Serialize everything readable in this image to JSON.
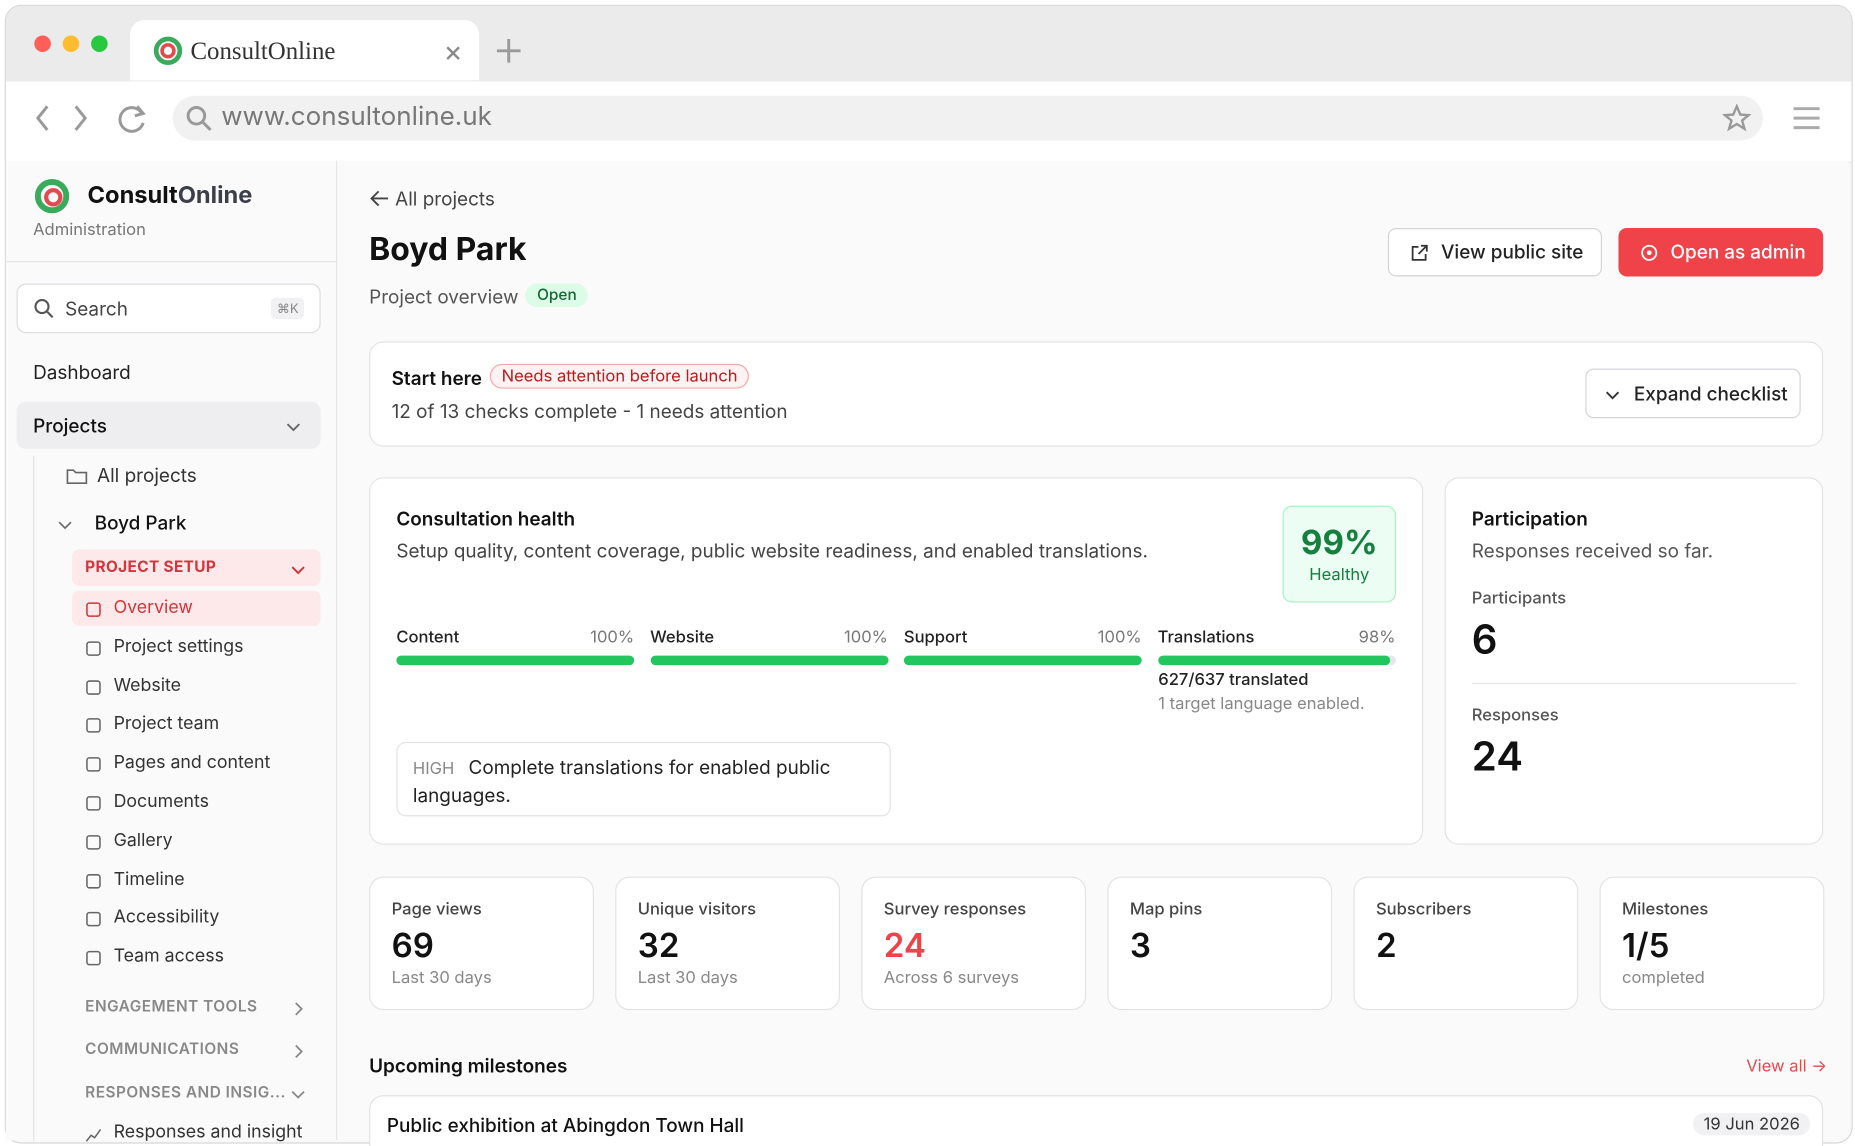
{
  "browser": {
    "tab_title": "ConsultOnline",
    "url": "www.consultonline.uk"
  },
  "sidebar": {
    "brand_a": "Consult",
    "brand_b": "Online",
    "subtitle": "Administration",
    "search": "Search",
    "shortcut": "⌘K",
    "dashboard": "Dashboard",
    "projects": "Projects",
    "all_projects": "All projects",
    "project": "Boyd Park",
    "setup": "PROJECT SETUP",
    "items": [
      "Overview",
      "Project settings",
      "Website",
      "Project team",
      "Pages and content",
      "Documents",
      "Gallery",
      "Timeline",
      "Accessibility",
      "Team access"
    ],
    "sections": [
      "ENGAGEMENT TOOLS",
      "COMMUNICATIONS",
      "RESPONSES AND INSIG..."
    ],
    "last_item": "Responses and insight"
  },
  "header": {
    "back": "All projects",
    "title": "Boyd Park",
    "subtitle": "Project overview",
    "status": "Open",
    "view_button": "View public site",
    "admin_button": "Open as admin"
  },
  "checklist": {
    "title": "Start here",
    "badge": "Needs attention before launch",
    "summary": "12 of 13 checks complete - 1 needs attention",
    "button": "Expand checklist"
  },
  "health": {
    "title": "Consultation health",
    "description": "Setup quality, content coverage, public website readiness, and enabled translations.",
    "score": "99%",
    "score_label": "Healthy",
    "bars": [
      {
        "name": "Content",
        "value": 100,
        "value_label": "100%"
      },
      {
        "name": "Website",
        "value": 100,
        "value_label": "100%"
      },
      {
        "name": "Support",
        "value": 100,
        "value_label": "100%"
      },
      {
        "name": "Translations",
        "value": 98,
        "value_label": "98%"
      }
    ],
    "translated": "627/637 translated",
    "languages": "1 target language enabled.",
    "issue_level": "HIGH",
    "issue_text": "Complete translations for enabled public languages."
  },
  "participation": {
    "title": "Participation",
    "description": "Responses received so far.",
    "stats": [
      {
        "label": "Participants",
        "value": "6"
      },
      {
        "label": "Responses",
        "value": "24"
      }
    ]
  },
  "kpis": [
    {
      "label": "Page views",
      "value": "69",
      "note": "Last 30 days"
    },
    {
      "label": "Unique visitors",
      "value": "32",
      "note": "Last 30 days"
    },
    {
      "label": "Survey responses",
      "value": "24",
      "note": "Across 6 surveys"
    },
    {
      "label": "Map pins",
      "value": "3"
    },
    {
      "label": "Subscribers",
      "value": "2"
    },
    {
      "label": "Milestones",
      "value": "1/5",
      "note": "completed"
    }
  ],
  "milestones": {
    "title": "Upcoming milestones",
    "view_all": "View all →",
    "items": [
      {
        "name": "Public exhibition at Abingdon Town Hall",
        "date": "19 Jun 2026"
      }
    ]
  }
}
